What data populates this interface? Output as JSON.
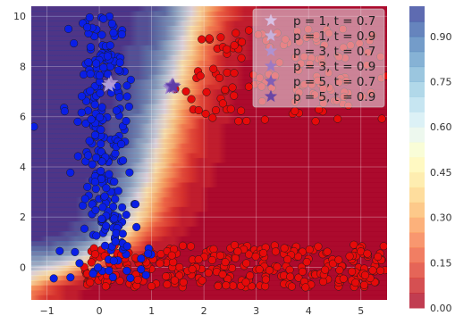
{
  "chart_data": {
    "type": "scatter",
    "title": "",
    "xlabel": "",
    "ylabel": "",
    "xlim": [
      -1.3,
      5.5
    ],
    "ylim": [
      -1.3,
      10.4
    ],
    "grid": true,
    "x_ticks": [
      "−1",
      "0",
      "1",
      "2",
      "3",
      "4",
      "5"
    ],
    "x_tick_values": [
      -1,
      0,
      1,
      2,
      3,
      4,
      5
    ],
    "y_ticks": [
      "0",
      "2",
      "4",
      "6",
      "8",
      "10"
    ],
    "y_tick_values": [
      0,
      2,
      4,
      6,
      8,
      10
    ],
    "decision_background": {
      "type": "filled-contour",
      "colormap": "RdYlBu",
      "boundary": [
        [
          -1.3,
          -0.9
        ],
        [
          0.1,
          0.5
        ],
        [
          0.7,
          1.8
        ],
        [
          1.1,
          4.0
        ],
        [
          1.35,
          6.2
        ],
        [
          1.6,
          8.0
        ],
        [
          1.9,
          10.4
        ]
      ],
      "colorbar_ticks": [
        "0.00",
        "0.15",
        "0.30",
        "0.45",
        "0.60",
        "0.75",
        "0.90"
      ],
      "colorbar_tick_values": [
        0.0,
        0.15,
        0.3,
        0.45,
        0.6,
        0.75,
        0.9
      ],
      "colorbar_range": [
        0.0,
        1.0
      ]
    },
    "class_colors": {
      "class_1": "#0a1ee6",
      "class_0": "#e60a0a"
    },
    "series_points": {
      "blue_cluster": {
        "x_mean": 0.05,
        "x_sd": 0.25,
        "y_min": 0.8,
        "y_max": 10.0,
        "count": 230
      },
      "red_upper": {
        "x_min": 1.4,
        "x_max": 5.5,
        "y_min": 5.8,
        "y_max": 9.5,
        "count": 150
      },
      "red_lower": {
        "x_min": -0.3,
        "x_max": 5.5,
        "y_min": -0.8,
        "y_max": 0.9,
        "count": 290
      },
      "blue_lower": {
        "x_min": -0.9,
        "x_max": 1.0,
        "y_min": -0.5,
        "y_max": 0.8,
        "count": 25
      }
    },
    "stars": [
      {
        "x": 0.18,
        "y": 7.25,
        "color": "#c7b6e2"
      },
      {
        "x": 0.22,
        "y": 7.35,
        "color": "#b49bd6"
      },
      {
        "x": 1.35,
        "y": 7.15,
        "color": "#9a7bcc"
      },
      {
        "x": 1.38,
        "y": 7.2,
        "color": "#7d5cbf"
      },
      {
        "x": 1.4,
        "y": 7.25,
        "color": "#6a47b0"
      },
      {
        "x": 1.42,
        "y": 7.2,
        "color": "#5a3aa6"
      }
    ],
    "legend": {
      "placement": "top-right",
      "entries": [
        {
          "label": "p = 1, t = 0.7",
          "color": "#d9c8ec"
        },
        {
          "label": "p = 1, t = 0.9",
          "color": "#c7b6e2"
        },
        {
          "label": "p = 3, t = 0.7",
          "color": "#ad94d6"
        },
        {
          "label": "p = 3, t = 0.9",
          "color": "#9878c8"
        },
        {
          "label": "p = 5, t = 0.7",
          "color": "#7a5bb8"
        },
        {
          "label": "p = 5, t = 0.9",
          "color": "#5e3fa6"
        }
      ]
    }
  }
}
